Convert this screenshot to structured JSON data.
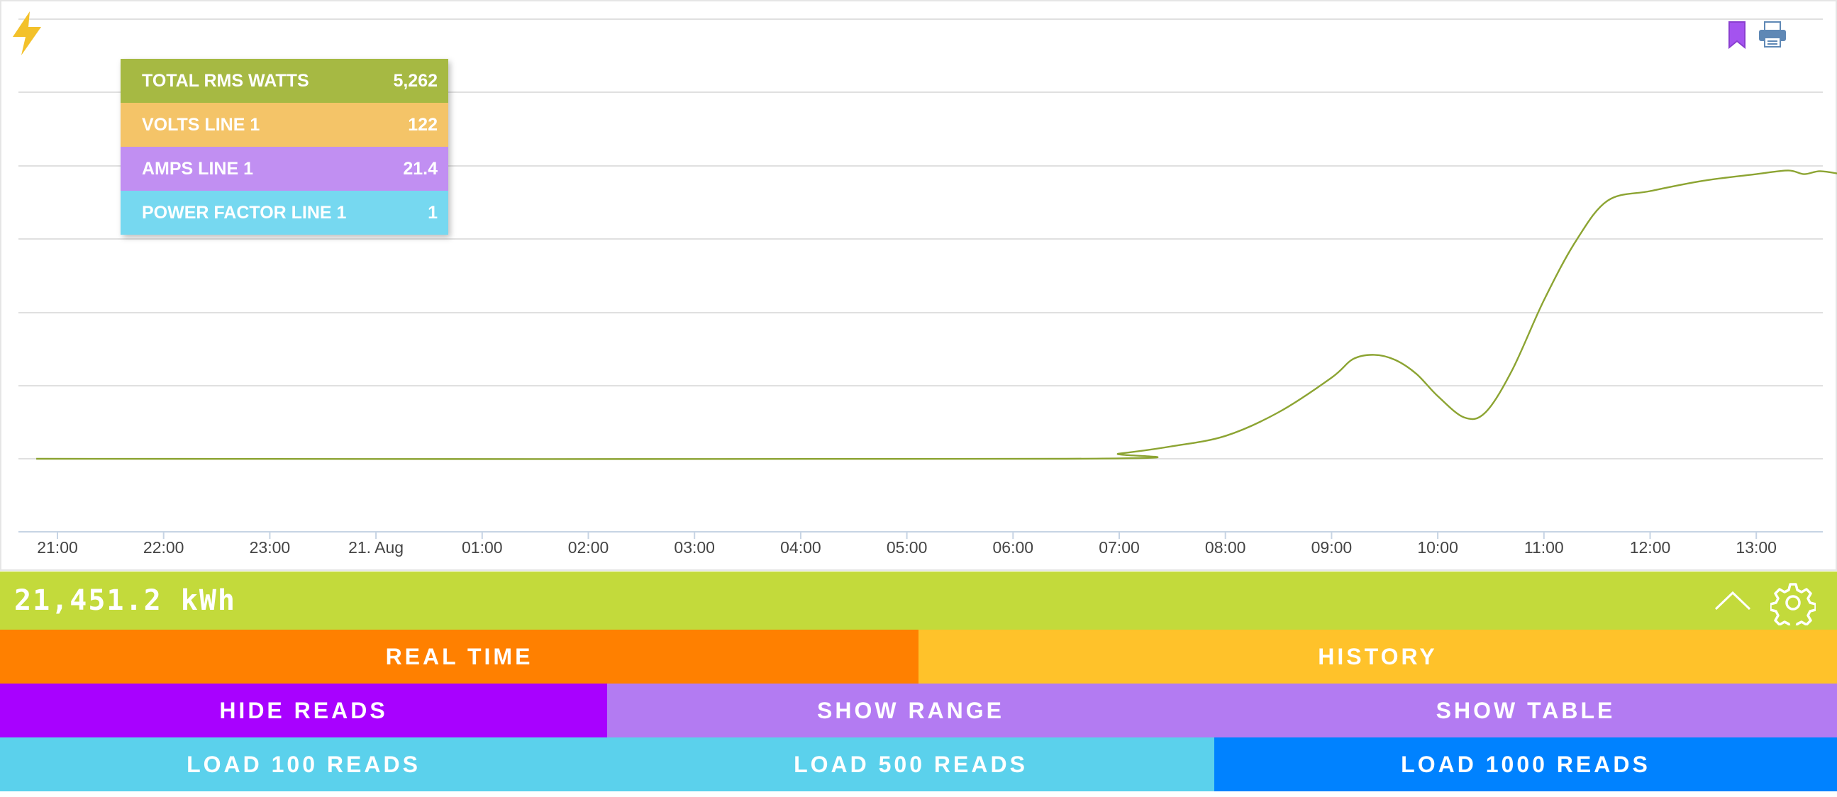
{
  "colors": {
    "series": "#8ca432",
    "total_bar": "#c3da3b",
    "real_time": "#ff8000",
    "history": "#ffc22a",
    "hide_reads": "#a801ff",
    "show_range": "#b37bf2",
    "show_table": "#b37bf2",
    "load_100": "#5bd1ec",
    "load_500": "#5bd1ec",
    "load_1000": "#0082ff",
    "tooltip_watts": "#a6b943",
    "tooltip_volts": "#f4c468",
    "tooltip_amps": "#c18ff2",
    "tooltip_pf": "#76d8f0",
    "bolt": "#f3c12a",
    "bookmark": "#a453ef",
    "printer": "#5f88b5"
  },
  "icons": {
    "logo": "lightning-bolt-icon",
    "bookmark": "bookmark-icon",
    "print": "printer-icon",
    "collapse": "chevron-up-icon",
    "settings": "gear-icon"
  },
  "tooltip": {
    "rows": [
      {
        "label": "TOTAL RMS WATTS",
        "value": "5,262"
      },
      {
        "label": "VOLTS LINE 1",
        "value": "122"
      },
      {
        "label": "AMPS LINE 1",
        "value": "21.4"
      },
      {
        "label": "POWER FACTOR LINE 1",
        "value": "1"
      }
    ]
  },
  "chart_data": {
    "type": "line",
    "title": "",
    "xlabel": "",
    "ylabel": "",
    "x_tick_labels": [
      "21:00",
      "22:00",
      "23:00",
      "21. Aug",
      "01:00",
      "02:00",
      "03:00",
      "04:00",
      "05:00",
      "06:00",
      "07:00",
      "08:00",
      "09:00",
      "10:00",
      "11:00",
      "12:00",
      "13:00"
    ],
    "x_unit": "hours since 21:00 on 20 Aug",
    "y_axis_labels_visible": false,
    "grid": true,
    "legend": "none",
    "series": [
      {
        "name": "",
        "points": [
          [
            -0.2,
            0
          ],
          [
            9.5,
            0
          ],
          [
            10,
            0.07
          ],
          [
            10.5,
            0.17
          ],
          [
            11,
            0.31
          ],
          [
            11.5,
            0.63
          ],
          [
            12,
            1.1
          ],
          [
            12.2,
            1.35
          ],
          [
            12.4,
            1.41
          ],
          [
            12.6,
            1.34
          ],
          [
            12.8,
            1.15
          ],
          [
            13,
            0.85
          ],
          [
            13.25,
            0.56
          ],
          [
            13.45,
            0.63
          ],
          [
            13.7,
            1.2
          ],
          [
            14,
            2.15
          ],
          [
            14.3,
            2.95
          ],
          [
            14.6,
            3.5
          ],
          [
            15,
            3.63
          ],
          [
            15.5,
            3.77
          ],
          [
            16,
            3.86
          ],
          [
            16.3,
            3.91
          ],
          [
            16.45,
            3.86
          ],
          [
            16.6,
            3.9
          ],
          [
            16.8,
            3.86
          ]
        ]
      }
    ]
  },
  "summary": {
    "total_energy": "21,451.2 kWh"
  },
  "buttons": {
    "real_time": "REAL TIME",
    "history": "HISTORY",
    "hide_reads": "HIDE READS",
    "show_range": "SHOW RANGE",
    "show_table": "SHOW TABLE",
    "load_100": "LOAD 100 READS",
    "load_500": "LOAD 500 READS",
    "load_1000": "LOAD 1000 READS"
  }
}
